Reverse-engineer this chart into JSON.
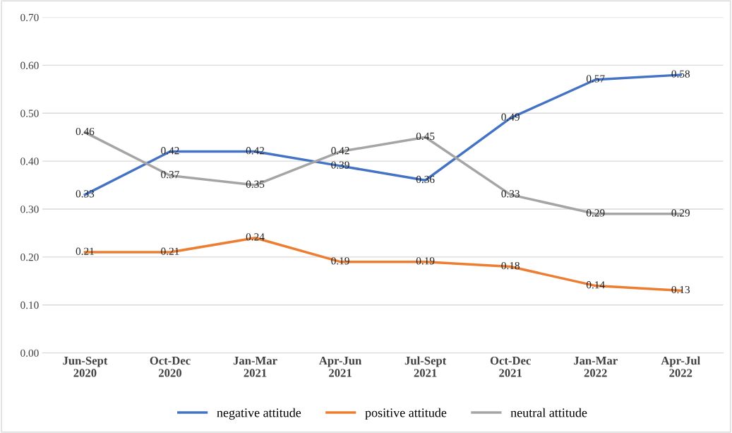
{
  "chart_data": {
    "type": "line",
    "categories": [
      "Jun-Sept\n2020",
      "Oct-Dec\n2020",
      "Jan-Mar\n2021",
      "Apr-Jun\n2021",
      "Jul-Sept\n2021",
      "Oct-Dec\n2021",
      "Jan-Mar\n2022",
      "Apr-Jul\n2022"
    ],
    "series": [
      {
        "name": "negative attitude",
        "color": "#4472c4",
        "values": [
          0.33,
          0.42,
          0.42,
          0.39,
          0.36,
          0.49,
          0.57,
          0.58
        ]
      },
      {
        "name": "positive attitude",
        "color": "#ed7d31",
        "values": [
          0.21,
          0.21,
          0.24,
          0.19,
          0.19,
          0.18,
          0.14,
          0.13
        ]
      },
      {
        "name": "neutral attitude",
        "color": "#a5a5a5",
        "values": [
          0.46,
          0.37,
          0.35,
          0.42,
          0.45,
          0.33,
          0.29,
          0.29
        ]
      }
    ],
    "ylim": [
      0,
      0.7
    ],
    "yticks": [
      {
        "value": 0,
        "label": "0.00"
      },
      {
        "value": 0.1,
        "label": "0.10"
      },
      {
        "value": 0.2,
        "label": "0.20"
      },
      {
        "value": 0.3,
        "label": "0.30"
      },
      {
        "value": 0.4,
        "label": "0.40"
      },
      {
        "value": 0.5,
        "label": "0.50"
      },
      {
        "value": 0.6,
        "label": "0.60"
      },
      {
        "value": 0.7,
        "label": "0.70"
      }
    ],
    "grid": "y",
    "legend": "bottom",
    "data_labels": true,
    "marker": "none",
    "line_style": "solid"
  }
}
